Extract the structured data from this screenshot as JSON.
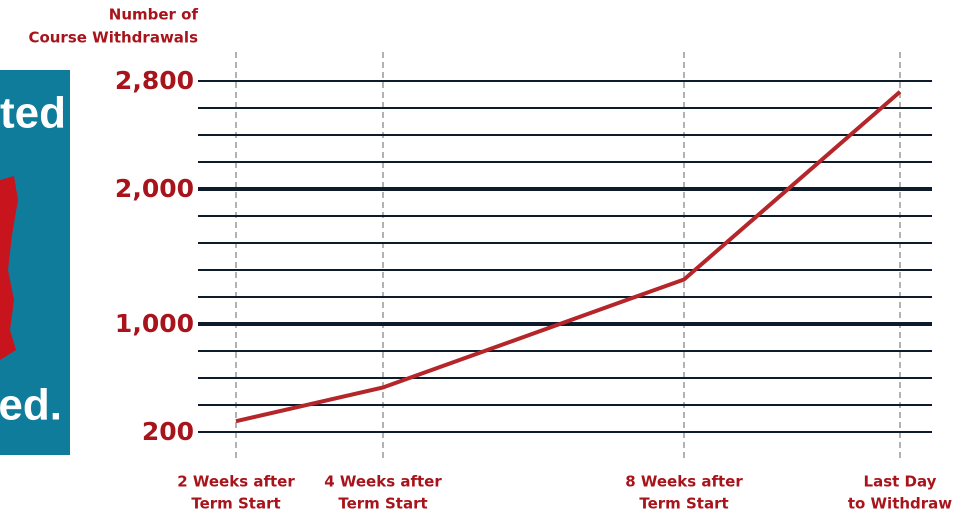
{
  "chart_data": {
    "type": "line",
    "y_label": [
      "Number of",
      "Course Withdrawals"
    ],
    "categories": [
      [
        "2 Weeks after",
        "Term Start"
      ],
      [
        "4 Weeks after",
        "Term Start"
      ],
      [
        "8 Weeks after",
        "Term Start"
      ],
      [
        "Last Day",
        "to Withdraw"
      ]
    ],
    "series": [
      {
        "color": "#b5262b",
        "values": [
          280,
          530,
          1330,
          2720
        ]
      }
    ],
    "ylim": [
      200,
      2800
    ],
    "yticks": [
      200,
      {
        "value": 1000,
        "label": "1,000"
      },
      {
        "value": 2000,
        "label": "2,000"
      },
      {
        "value": 2800,
        "label": "2,800"
      }
    ],
    "minor_gridlines": [
      400,
      600,
      800,
      1200,
      1400,
      1600,
      1800,
      2200,
      2400,
      2600
    ],
    "major_gridlines": [
      1000,
      2000
    ],
    "grid": true
  },
  "sidebar": {
    "top_text": "ted",
    "bottom_text": "ed."
  }
}
